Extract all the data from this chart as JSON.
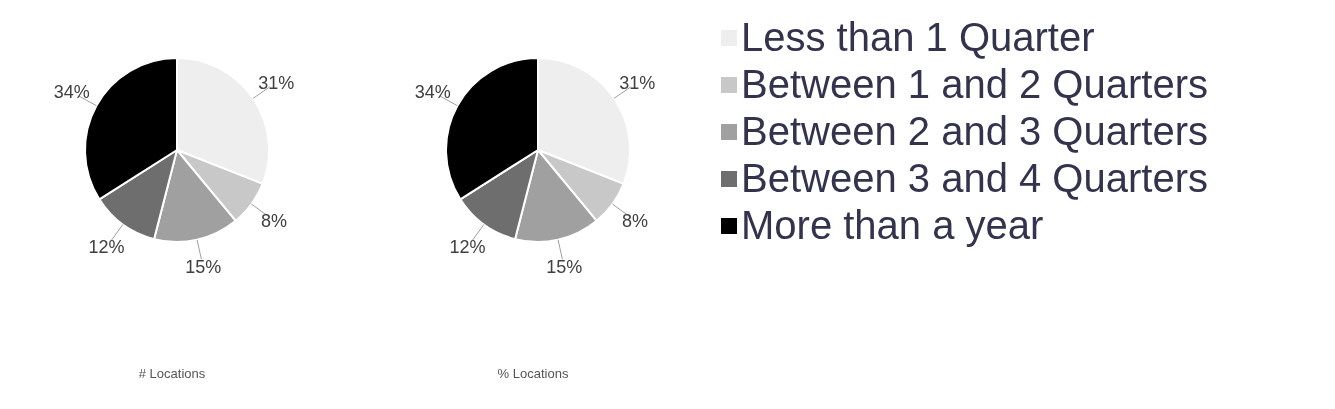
{
  "chart_data": [
    {
      "type": "pie",
      "title": "# Locations",
      "categories": [
        null,
        null,
        null,
        null,
        null
      ],
      "values": [
        31,
        8,
        15,
        12,
        34
      ],
      "value_labels": [
        "31%",
        "8%",
        "15%",
        "12%",
        "34%"
      ],
      "colors": [
        "#eeeeee",
        "#c8c8c8",
        "#a0a0a0",
        "#6e6e6e",
        "#000000"
      ]
    },
    {
      "type": "pie",
      "title": "% Locations",
      "categories": [
        "Less than 1 Quarter",
        "Between 1 and 2 Quarters",
        "Between 2 and 3 Quarters",
        "Between 3 and 4 Quarters",
        "More than a year"
      ],
      "values": [
        31,
        8,
        15,
        12,
        34
      ],
      "value_labels": [
        "31%",
        "8%",
        "15%",
        "12%",
        "34%"
      ],
      "colors": [
        "#eeeeee",
        "#c8c8c8",
        "#a0a0a0",
        "#6e6e6e",
        "#000000"
      ],
      "legend": "right"
    }
  ]
}
